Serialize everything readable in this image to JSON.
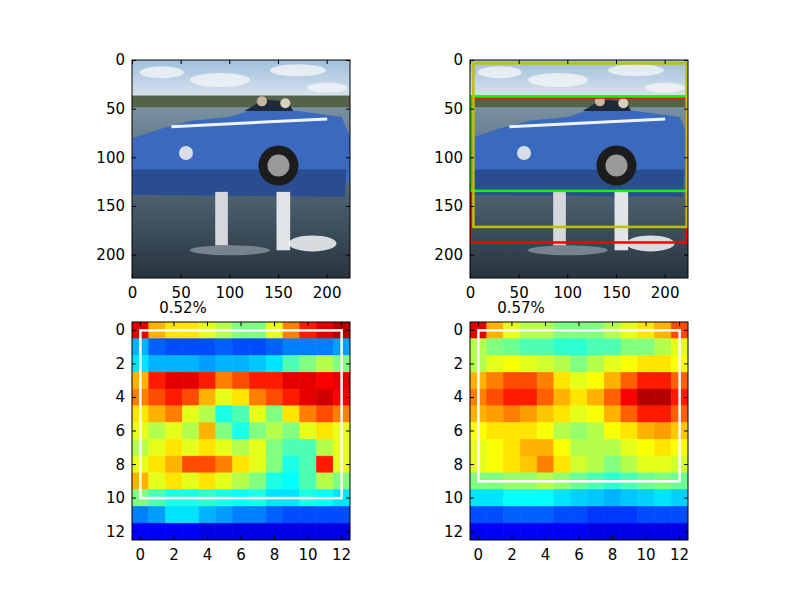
{
  "chart_data": [
    {
      "type": "image",
      "xlim": [
        -0.5,
        223.5
      ],
      "ylim": [
        223.5,
        -0.5
      ],
      "xticks": [
        0,
        50,
        100,
        150,
        200
      ],
      "yticks": [
        0,
        50,
        100,
        150,
        200
      ]
    },
    {
      "type": "image",
      "xlim": [
        -0.5,
        223.5
      ],
      "ylim": [
        223.5,
        -0.5
      ],
      "xticks": [
        0,
        50,
        100,
        150,
        200
      ],
      "yticks": [
        0,
        50,
        100,
        150,
        200
      ],
      "boxes": [
        {
          "color": "#ff0000",
          "x0": 0,
          "y0": 38,
          "x1": 222,
          "y1": 187
        },
        {
          "color": "#00ff00",
          "x0": 0,
          "y0": 37,
          "x1": 223,
          "y1": 134
        },
        {
          "color": "#bfbf00",
          "x0": 3,
          "y0": 3,
          "x1": 222,
          "y1": 171
        }
      ]
    },
    {
      "type": "heatmap",
      "title": "0.52%",
      "xlim": [
        -0.5,
        12.5
      ],
      "ylim": [
        12.5,
        -0.5
      ],
      "xticks": [
        0,
        2,
        4,
        6,
        8,
        10,
        12
      ],
      "yticks": [
        0,
        2,
        4,
        6,
        8,
        10,
        12
      ],
      "color_range": [
        0,
        1
      ],
      "cells": [
        [
          0.9,
          0.7,
          0.65,
          0.65,
          0.6,
          0.55,
          0.5,
          0.5,
          0.6,
          0.75,
          0.85,
          0.9,
          0.95
        ],
        [
          0.3,
          0.22,
          0.2,
          0.2,
          0.2,
          0.22,
          0.2,
          0.2,
          0.22,
          0.25,
          0.25,
          0.25,
          0.28
        ],
        [
          0.35,
          0.3,
          0.3,
          0.3,
          0.28,
          0.3,
          0.3,
          0.32,
          0.35,
          0.45,
          0.5,
          0.55,
          0.5
        ],
        [
          0.7,
          0.85,
          0.9,
          0.9,
          0.85,
          0.75,
          0.8,
          0.85,
          0.85,
          0.9,
          0.9,
          0.88,
          0.9
        ],
        [
          0.75,
          0.8,
          0.85,
          0.8,
          0.7,
          0.6,
          0.65,
          0.75,
          0.8,
          0.85,
          0.9,
          0.92,
          0.88
        ],
        [
          0.65,
          0.7,
          0.75,
          0.6,
          0.55,
          0.4,
          0.45,
          0.6,
          0.5,
          0.65,
          0.75,
          0.8,
          0.75
        ],
        [
          0.6,
          0.55,
          0.6,
          0.55,
          0.7,
          0.5,
          0.4,
          0.5,
          0.55,
          0.5,
          0.6,
          0.65,
          0.6
        ],
        [
          0.55,
          0.6,
          0.65,
          0.6,
          0.65,
          0.6,
          0.55,
          0.6,
          0.5,
          0.45,
          0.45,
          0.55,
          0.6
        ],
        [
          0.6,
          0.65,
          0.7,
          0.8,
          0.8,
          0.75,
          0.65,
          0.6,
          0.5,
          0.4,
          0.45,
          0.85,
          0.6
        ],
        [
          0.7,
          0.6,
          0.65,
          0.6,
          0.65,
          0.6,
          0.55,
          0.5,
          0.4,
          0.38,
          0.45,
          0.55,
          0.5
        ],
        [
          0.5,
          0.45,
          0.4,
          0.4,
          0.42,
          0.4,
          0.38,
          0.4,
          0.35,
          0.35,
          0.4,
          0.38,
          0.35
        ],
        [
          0.25,
          0.28,
          0.35,
          0.35,
          0.3,
          0.28,
          0.25,
          0.25,
          0.22,
          0.2,
          0.2,
          0.2,
          0.2
        ],
        [
          0.12,
          0.12,
          0.12,
          0.12,
          0.1,
          0.1,
          0.1,
          0.1,
          0.1,
          0.1,
          0.1,
          0.1,
          0.1
        ]
      ],
      "boxes": [
        {
          "color": "#ffffff",
          "x0": 0,
          "y0": 0,
          "x1": 12,
          "y1": 10
        }
      ]
    },
    {
      "type": "heatmap",
      "title": "0.57%",
      "xlim": [
        -0.5,
        12.5
      ],
      "ylim": [
        12.5,
        -0.5
      ],
      "xticks": [
        0,
        2,
        4,
        6,
        8,
        10,
        12
      ],
      "yticks": [
        0,
        2,
        4,
        6,
        8,
        10,
        12
      ],
      "color_range": [
        0,
        1
      ],
      "cells": [
        [
          0.9,
          0.7,
          0.6,
          0.55,
          0.55,
          0.5,
          0.5,
          0.5,
          0.55,
          0.6,
          0.65,
          0.7,
          0.8
        ],
        [
          0.55,
          0.5,
          0.48,
          0.45,
          0.45,
          0.42,
          0.42,
          0.45,
          0.45,
          0.5,
          0.5,
          0.55,
          0.6
        ],
        [
          0.55,
          0.6,
          0.62,
          0.6,
          0.58,
          0.55,
          0.5,
          0.55,
          0.6,
          0.62,
          0.65,
          0.65,
          0.62
        ],
        [
          0.7,
          0.75,
          0.8,
          0.8,
          0.75,
          0.65,
          0.6,
          0.62,
          0.7,
          0.78,
          0.85,
          0.85,
          0.78
        ],
        [
          0.75,
          0.8,
          0.85,
          0.85,
          0.78,
          0.7,
          0.65,
          0.7,
          0.78,
          0.88,
          0.95,
          0.95,
          0.85
        ],
        [
          0.7,
          0.72,
          0.75,
          0.72,
          0.68,
          0.65,
          0.6,
          0.62,
          0.7,
          0.78,
          0.85,
          0.85,
          0.78
        ],
        [
          0.62,
          0.65,
          0.65,
          0.65,
          0.62,
          0.55,
          0.52,
          0.55,
          0.62,
          0.65,
          0.7,
          0.72,
          0.68
        ],
        [
          0.6,
          0.62,
          0.65,
          0.7,
          0.7,
          0.62,
          0.55,
          0.55,
          0.55,
          0.6,
          0.62,
          0.65,
          0.62
        ],
        [
          0.6,
          0.62,
          0.65,
          0.68,
          0.75,
          0.65,
          0.58,
          0.55,
          0.5,
          0.55,
          0.6,
          0.6,
          0.58
        ],
        [
          0.5,
          0.5,
          0.52,
          0.52,
          0.55,
          0.52,
          0.48,
          0.45,
          0.42,
          0.45,
          0.48,
          0.5,
          0.48
        ],
        [
          0.35,
          0.35,
          0.38,
          0.38,
          0.38,
          0.35,
          0.33,
          0.32,
          0.3,
          0.32,
          0.33,
          0.35,
          0.33
        ],
        [
          0.2,
          0.2,
          0.22,
          0.22,
          0.22,
          0.2,
          0.2,
          0.18,
          0.18,
          0.18,
          0.2,
          0.2,
          0.2
        ],
        [
          0.12,
          0.12,
          0.12,
          0.12,
          0.12,
          0.12,
          0.12,
          0.1,
          0.1,
          0.1,
          0.1,
          0.1,
          0.1
        ]
      ],
      "boxes": [
        {
          "color": "#ffffff",
          "x0": 0,
          "y0": 0,
          "x1": 12,
          "y1": 9
        }
      ]
    }
  ]
}
